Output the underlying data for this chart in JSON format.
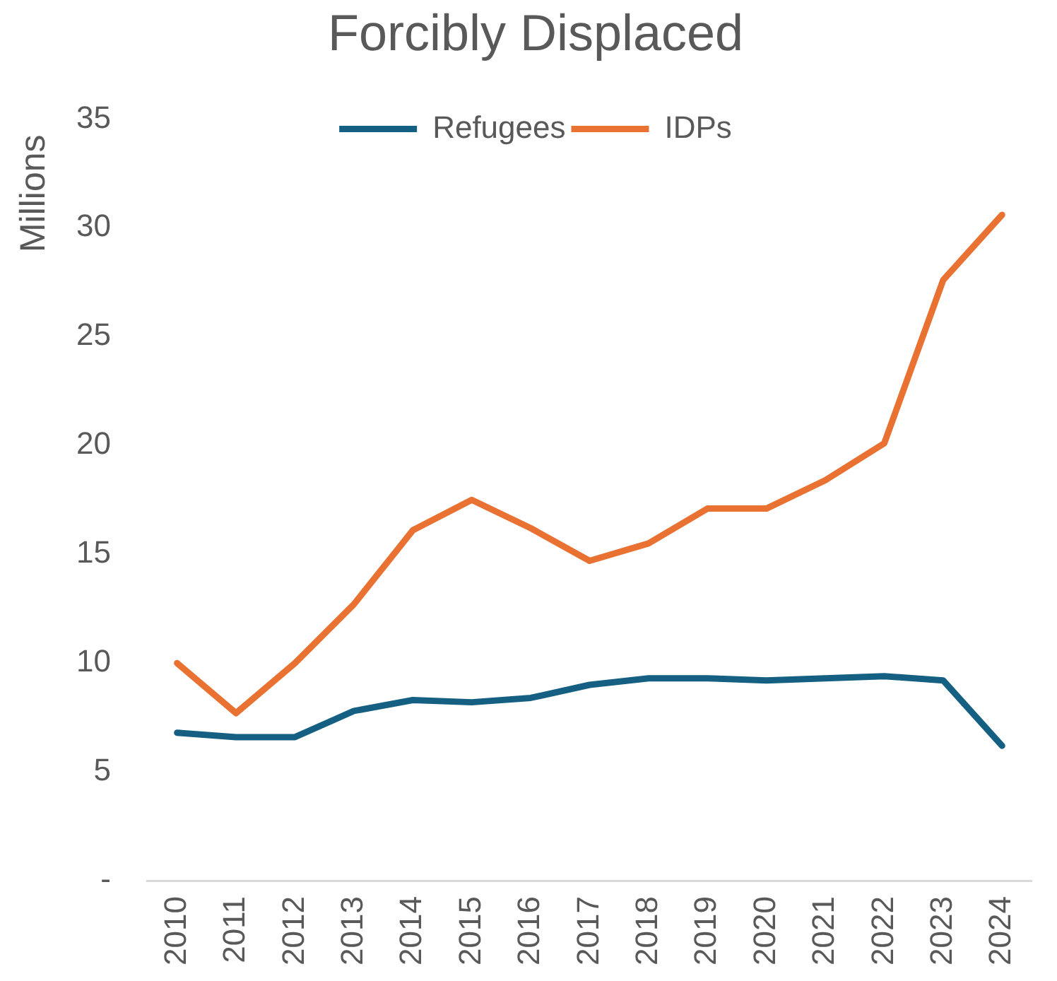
{
  "chart_data": {
    "type": "line",
    "title": "Forcibly Displaced",
    "ylabel": "Millions",
    "categories": [
      "2010",
      "2011",
      "2012",
      "2013",
      "2014",
      "2015",
      "2016",
      "2017",
      "2018",
      "2019",
      "2020",
      "2021",
      "2022",
      "2023",
      "2024"
    ],
    "series": [
      {
        "name": "Refugees",
        "color": "#156082",
        "values": [
          6.8,
          6.6,
          6.6,
          7.8,
          8.3,
          8.2,
          8.4,
          9.0,
          9.3,
          9.3,
          9.2,
          9.3,
          9.4,
          9.2,
          6.2
        ]
      },
      {
        "name": "IDPs",
        "color": "#e97132",
        "values": [
          10.0,
          7.7,
          10.0,
          12.7,
          16.1,
          17.5,
          16.2,
          14.7,
          15.5,
          17.1,
          17.1,
          18.4,
          20.1,
          27.6,
          30.6
        ]
      }
    ],
    "ylim": [
      0,
      35
    ],
    "yticks": [
      {
        "value": 0,
        "label": "-"
      },
      5,
      10,
      15,
      20,
      25,
      30,
      35
    ],
    "grid": false,
    "legend": "top"
  }
}
